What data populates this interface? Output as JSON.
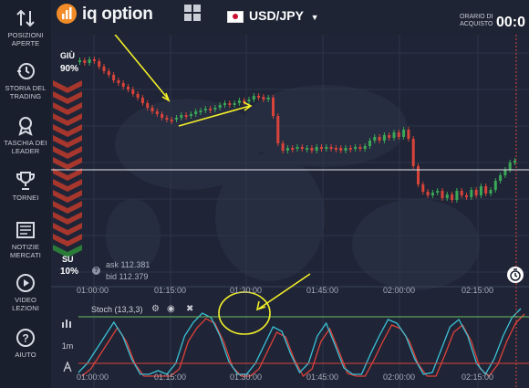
{
  "sidebar": {
    "items": [
      {
        "label": "POSIZIONI\nAPERTE",
        "icon": "arrows-updown-icon"
      },
      {
        "label": "STORIA DEL\nTRADING",
        "icon": "history-icon"
      },
      {
        "label": "TASCHIA DEI\nLEADER",
        "icon": "medal-icon"
      },
      {
        "label": "TORNEI",
        "icon": "trophy-icon"
      },
      {
        "label": "NOTIZIE\nMERCATI",
        "icon": "news-icon"
      },
      {
        "label": "VIDEO\nLEZIONI",
        "icon": "play-icon"
      },
      {
        "label": "AIUTO",
        "icon": "help-icon"
      }
    ]
  },
  "header": {
    "logo_text": "iq option",
    "asset": "USD/JPY",
    "purchase_label": "ORARIO DI\nACQUISTO",
    "purchase_time": "00:0"
  },
  "chart": {
    "direction_down_label": "GIÙ",
    "direction_down_pct": "90%",
    "direction_up_label": "SU",
    "direction_up_pct": "10%",
    "ask": "ask 112.381",
    "bid": "bid 112.379",
    "time_labels": [
      "01:00:00",
      "01:15:00",
      "01:30:00",
      "01:45:00",
      "02:00:00",
      "02:15:00"
    ],
    "indicator_title": "Stoch (13,3,3)",
    "interval": "1m"
  },
  "colors": {
    "bull": "#3aa856",
    "bear": "#d9443a",
    "annotation": "#f4ef2a",
    "stoch_k": "#3bc1d6",
    "stoch_d": "#e0413a"
  }
}
